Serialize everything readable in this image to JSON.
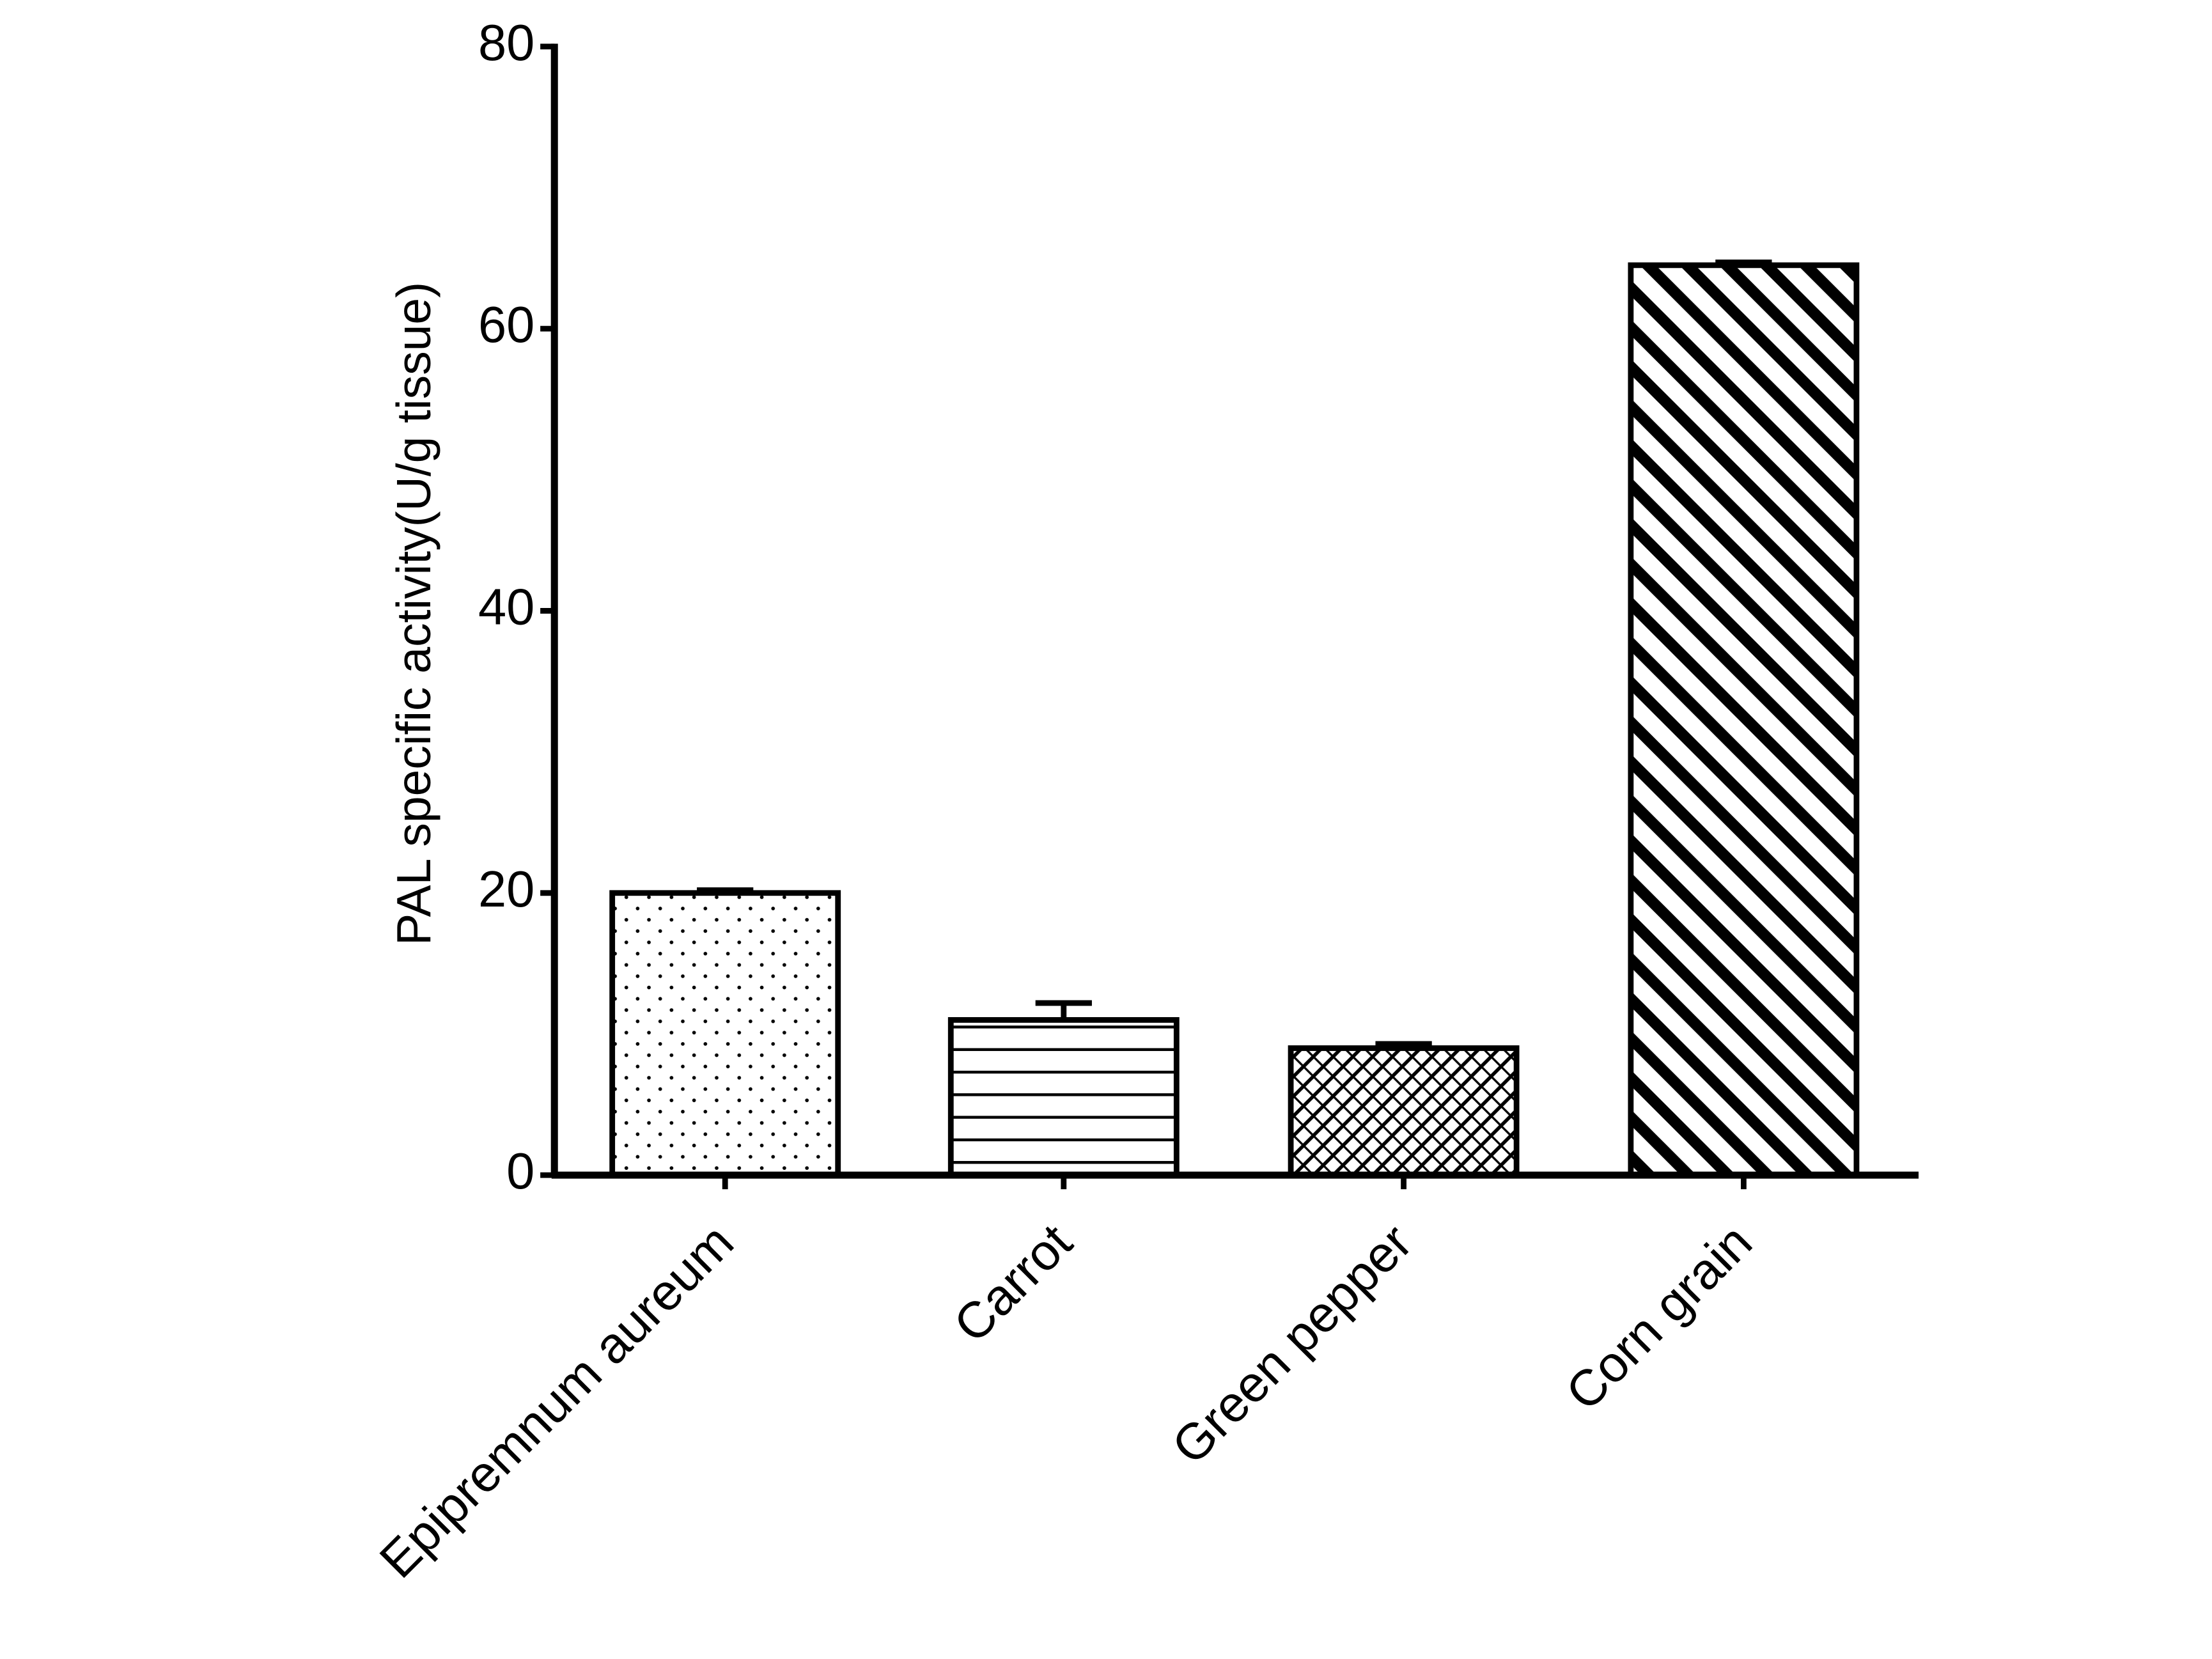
{
  "chart_data": {
    "type": "bar",
    "y_label": "PAL specific activity(U/g tissue)",
    "categories": [
      "Epipremnum aureum",
      "Carrot",
      "Green pepper",
      "Corn grain"
    ],
    "values": [
      20,
      11,
      9,
      64.5
    ],
    "errors": [
      0.2,
      1.2,
      0.3,
      0.2
    ],
    "patterns": [
      "dots",
      "horizontal",
      "crosshatch",
      "diagonal"
    ],
    "color": "#000000",
    "ylim": [
      0,
      80
    ],
    "yticks": [
      0,
      20,
      40,
      60,
      80
    ],
    "grid": false
  }
}
